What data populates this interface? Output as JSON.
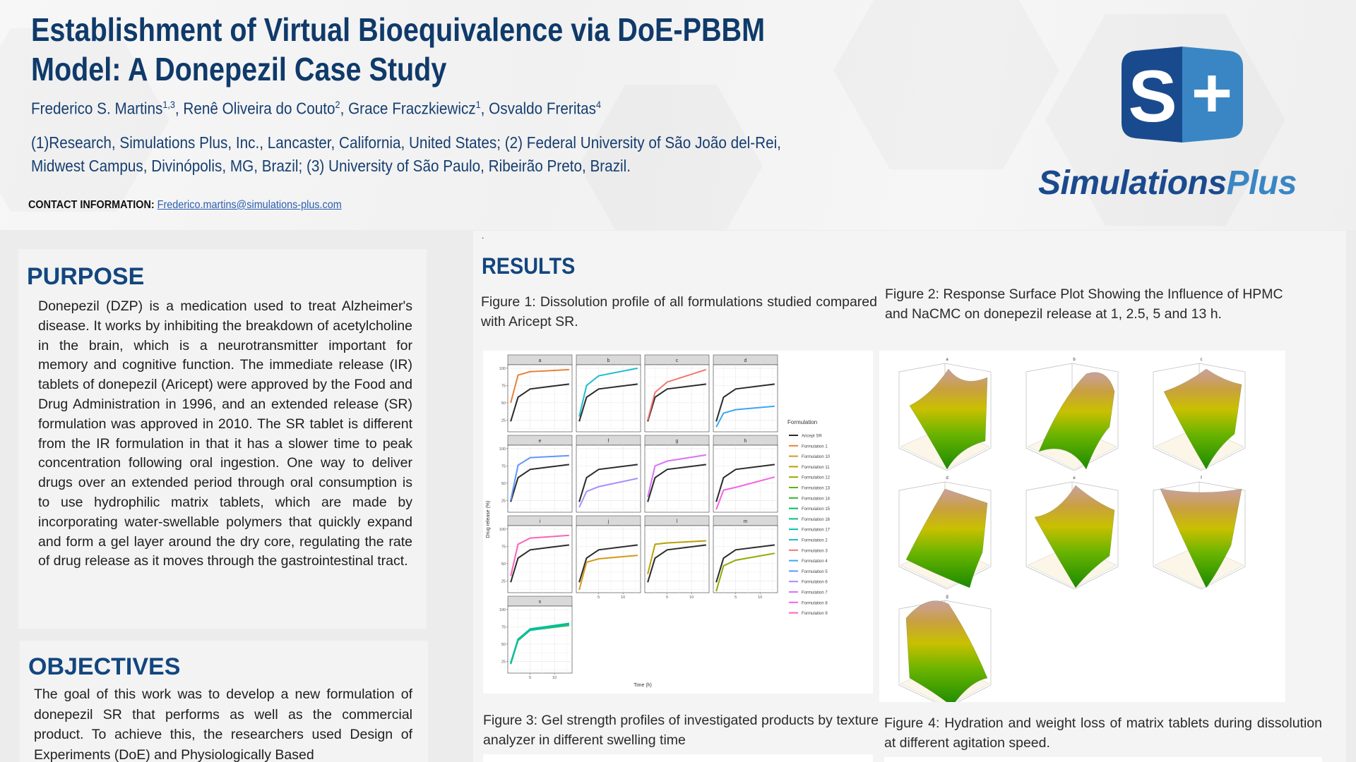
{
  "header": {
    "title_line1": "Establishment of Virtual Bioequivalence via DoE-PBBM",
    "title_line2": "Model: A Donepezil  Case Study",
    "authors": [
      {
        "name": "Frederico S. Martins",
        "sup": "1,3"
      },
      {
        "name": "Renê Oliveira do Couto",
        "sup": "2"
      },
      {
        "name": "Grace Fraczkiewicz",
        "sup": "1"
      },
      {
        "name": "Osvaldo Freritas",
        "sup": "4"
      }
    ],
    "affiliation_line1": "(1)Research, Simulations Plus, Inc., Lancaster, California, United States; (2) Federal University of São João del-Rei,",
    "affiliation_line2": "Midwest Campus, Divinópolis, MG, Brazil; (3) University of São Paulo, Ribeirão Preto, Brazil.",
    "contact_label": "CONTACT INFORMATION:",
    "contact_email": "Frederico.martins@simulations-plus.com"
  },
  "logo": {
    "mark_letter": "S",
    "mark_plus": "+",
    "text_part1": "Simulations",
    "text_part2": "Plus",
    "colors": {
      "dark": "#1a4a8e",
      "light": "#3a86c4"
    }
  },
  "purpose": {
    "heading": "PURPOSE",
    "text": "Donepezil (DZP) is a medication used to treat Alzheimer's disease. It works by inhibiting the breakdown of acetylcholine in the brain, which is a neurotransmitter important for memory and cognitive function. The immediate release (IR) tablets of donepezil (Aricept) were approved by the Food and Drug Administration in 1996, and an extended release (SR) formulation was approved in 2010. The SR tablet is different from the IR formulation in that it has a slower time to peak concentration following oral ingestion. One way to deliver drugs over an extended period through oral consumption is to use hydrophilic matrix tablets, which are made by incorporating water-swellable polymers that quickly expand and form a gel layer around the dry core, regulating the rate of drug release as it moves through the gastrointestinal tract."
  },
  "objectives": {
    "heading": "OBJECTIVES",
    "text": "The goal of this work was to develop a new formulation of donepezil SR that performs as well as the commercial product. To achieve this, the researchers used Design of Experiments (DoE) and Physiologically Based"
  },
  "results": {
    "heading": "RESULTS",
    "dot": ".",
    "figure1_caption": "Figure 1: Dissolution profile of all formulations studied compared with Aricept SR.",
    "figure2_caption": "Figure 2: Response Surface Plot Showing the Influence of HPMC and NaCMC on donepezil release at 1, 2.5, 5 and 13 h.",
    "figure3_caption": "Figure 3: Gel strength profiles of investigated products by texture analyzer in different swelling time",
    "figure4_caption": "Figure 4: Hydration and weight loss of matrix tablets during dissolution at different agitation speed.",
    "figure2_panels": [
      "a",
      "b",
      "c",
      "d",
      "e",
      "f",
      "g"
    ]
  },
  "chart_data": {
    "type": "line",
    "xlabel": "Time (h)",
    "ylabel": "Drug release (%)",
    "legend_title": "Formulation",
    "legend_position": "right",
    "grid": true,
    "xlim": [
      0.4,
      13.6
    ],
    "ylim": [
      8,
      105
    ],
    "x_ticks": [
      5,
      10
    ],
    "y_ticks": [
      25,
      50,
      75,
      100
    ],
    "x": [
      1,
      2.5,
      5,
      13
    ],
    "legend": [
      {
        "name": "Aricept SR",
        "color": "#2b2b2b"
      },
      {
        "name": "Formulation 1",
        "color": "#e8823a"
      },
      {
        "name": "Formulation 10",
        "color": "#d39a1a"
      },
      {
        "name": "Formulation 11",
        "color": "#b7a000"
      },
      {
        "name": "Formulation 12",
        "color": "#93aa00"
      },
      {
        "name": "Formulation 13",
        "color": "#5eb300"
      },
      {
        "name": "Formulation 14",
        "color": "#2fb82f"
      },
      {
        "name": "Formulation 15",
        "color": "#00bb62"
      },
      {
        "name": "Formulation 16",
        "color": "#00bf8c"
      },
      {
        "name": "Formulation 17",
        "color": "#00c0b0"
      },
      {
        "name": "Formulation 2",
        "color": "#1cbdd0"
      },
      {
        "name": "Formulation 3",
        "color": "#f2766d"
      },
      {
        "name": "Formulation 4",
        "color": "#3aa8f0"
      },
      {
        "name": "Formulation 5",
        "color": "#6196ff"
      },
      {
        "name": "Formulation 6",
        "color": "#a98cff"
      },
      {
        "name": "Formulation 7",
        "color": "#d873f5"
      },
      {
        "name": "Formulation 8",
        "color": "#f364e0"
      },
      {
        "name": "Formulation 9",
        "color": "#fb63b8"
      }
    ],
    "reference": {
      "name": "Aricept SR",
      "values": [
        23,
        58,
        70,
        77
      ]
    },
    "panels": [
      {
        "label": "a",
        "series": [
          {
            "name": "Formulation 1",
            "values": [
              50,
              90,
              95,
              98
            ]
          }
        ]
      },
      {
        "label": "b",
        "series": [
          {
            "name": "Formulation 2",
            "values": [
              30,
              75,
              89,
              100
            ]
          }
        ]
      },
      {
        "label": "c",
        "series": [
          {
            "name": "Formulation 3",
            "values": [
              25,
              65,
              80,
              98
            ]
          }
        ]
      },
      {
        "label": "d",
        "series": [
          {
            "name": "Formulation 4",
            "values": [
              15,
              35,
              40,
              45
            ]
          }
        ]
      },
      {
        "label": "e",
        "series": [
          {
            "name": "Formulation 5",
            "values": [
              25,
              76,
              87,
              90
            ]
          }
        ]
      },
      {
        "label": "f",
        "series": [
          {
            "name": "Formulation 6",
            "values": [
              15,
              38,
              45,
              57
            ]
          }
        ]
      },
      {
        "label": "g",
        "series": [
          {
            "name": "Formulation 7",
            "values": [
              30,
              75,
              82,
              91
            ]
          }
        ]
      },
      {
        "label": "h",
        "series": [
          {
            "name": "Formulation 8",
            "values": [
              12,
              40,
              44,
              59
            ]
          }
        ]
      },
      {
        "label": "i",
        "series": [
          {
            "name": "Formulation 9",
            "values": [
              32,
              78,
              87,
              91
            ]
          }
        ]
      },
      {
        "label": "j",
        "series": [
          {
            "name": "Formulation 10",
            "values": [
              12,
              52,
              57,
              62
            ]
          }
        ]
      },
      {
        "label": "l",
        "series": [
          {
            "name": "Formulation 11",
            "values": [
              35,
              78,
              80,
              83
            ]
          }
        ]
      },
      {
        "label": "m",
        "series": [
          {
            "name": "Formulation 12",
            "values": [
              10,
              47,
              55,
              65
            ]
          }
        ]
      },
      {
        "label": "n",
        "series": [
          {
            "name": "Formulation 13",
            "values": [
              21,
              55,
              70,
              77
            ]
          },
          {
            "name": "Formulation 14",
            "values": [
              22,
              56,
              71,
              78
            ]
          },
          {
            "name": "Formulation 15",
            "values": [
              22,
              57,
              71,
              79
            ]
          },
          {
            "name": "Formulation 16",
            "values": [
              23,
              57,
              72,
              80
            ]
          },
          {
            "name": "Formulation 17",
            "values": [
              22,
              56,
              70,
              78
            ]
          }
        ]
      }
    ]
  }
}
